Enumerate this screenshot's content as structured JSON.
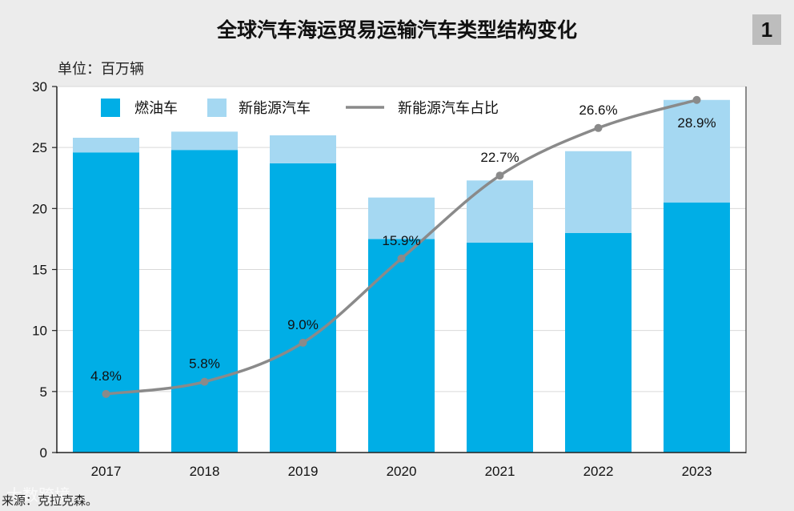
{
  "page_title": "全球汽车海运贸易运输汽车类型结构变化",
  "badge": "1",
  "unit_label": "单位：百万辆",
  "source": "来源：克拉克森。",
  "watermark": "大数跨境",
  "colors": {
    "fuel": "#00aee6",
    "nev": "#a5d8f2",
    "line": "#8a8a8a",
    "background": "#ececec",
    "plot_bg": "#ffffff"
  },
  "chart_data": {
    "type": "bar",
    "stacked": true,
    "title": "全球汽车海运贸易运输汽车类型结构变化",
    "ylabel": "单位：百万辆",
    "ylim": [
      0,
      30
    ],
    "yticks": [
      0,
      5,
      10,
      15,
      20,
      25,
      30
    ],
    "grid": true,
    "legend_position": "top-left",
    "categories": [
      "2017",
      "2018",
      "2019",
      "2020",
      "2021",
      "2022",
      "2023"
    ],
    "series": [
      {
        "name": "燃油车",
        "type": "bar",
        "values": [
          24.6,
          24.8,
          23.7,
          17.5,
          17.2,
          18.0,
          20.5
        ]
      },
      {
        "name": "新能源汽车",
        "type": "bar",
        "values": [
          1.2,
          1.5,
          2.3,
          3.4,
          5.1,
          6.7,
          8.4
        ]
      },
      {
        "name": "新能源汽车占比",
        "type": "line",
        "unit": "%",
        "values": [
          4.8,
          5.8,
          9.0,
          15.9,
          22.7,
          26.6,
          28.9
        ]
      }
    ],
    "data_labels": [
      "4.8%",
      "5.8%",
      "9.0%",
      "15.9%",
      "22.7%",
      "26.6%",
      "28.9%"
    ]
  }
}
